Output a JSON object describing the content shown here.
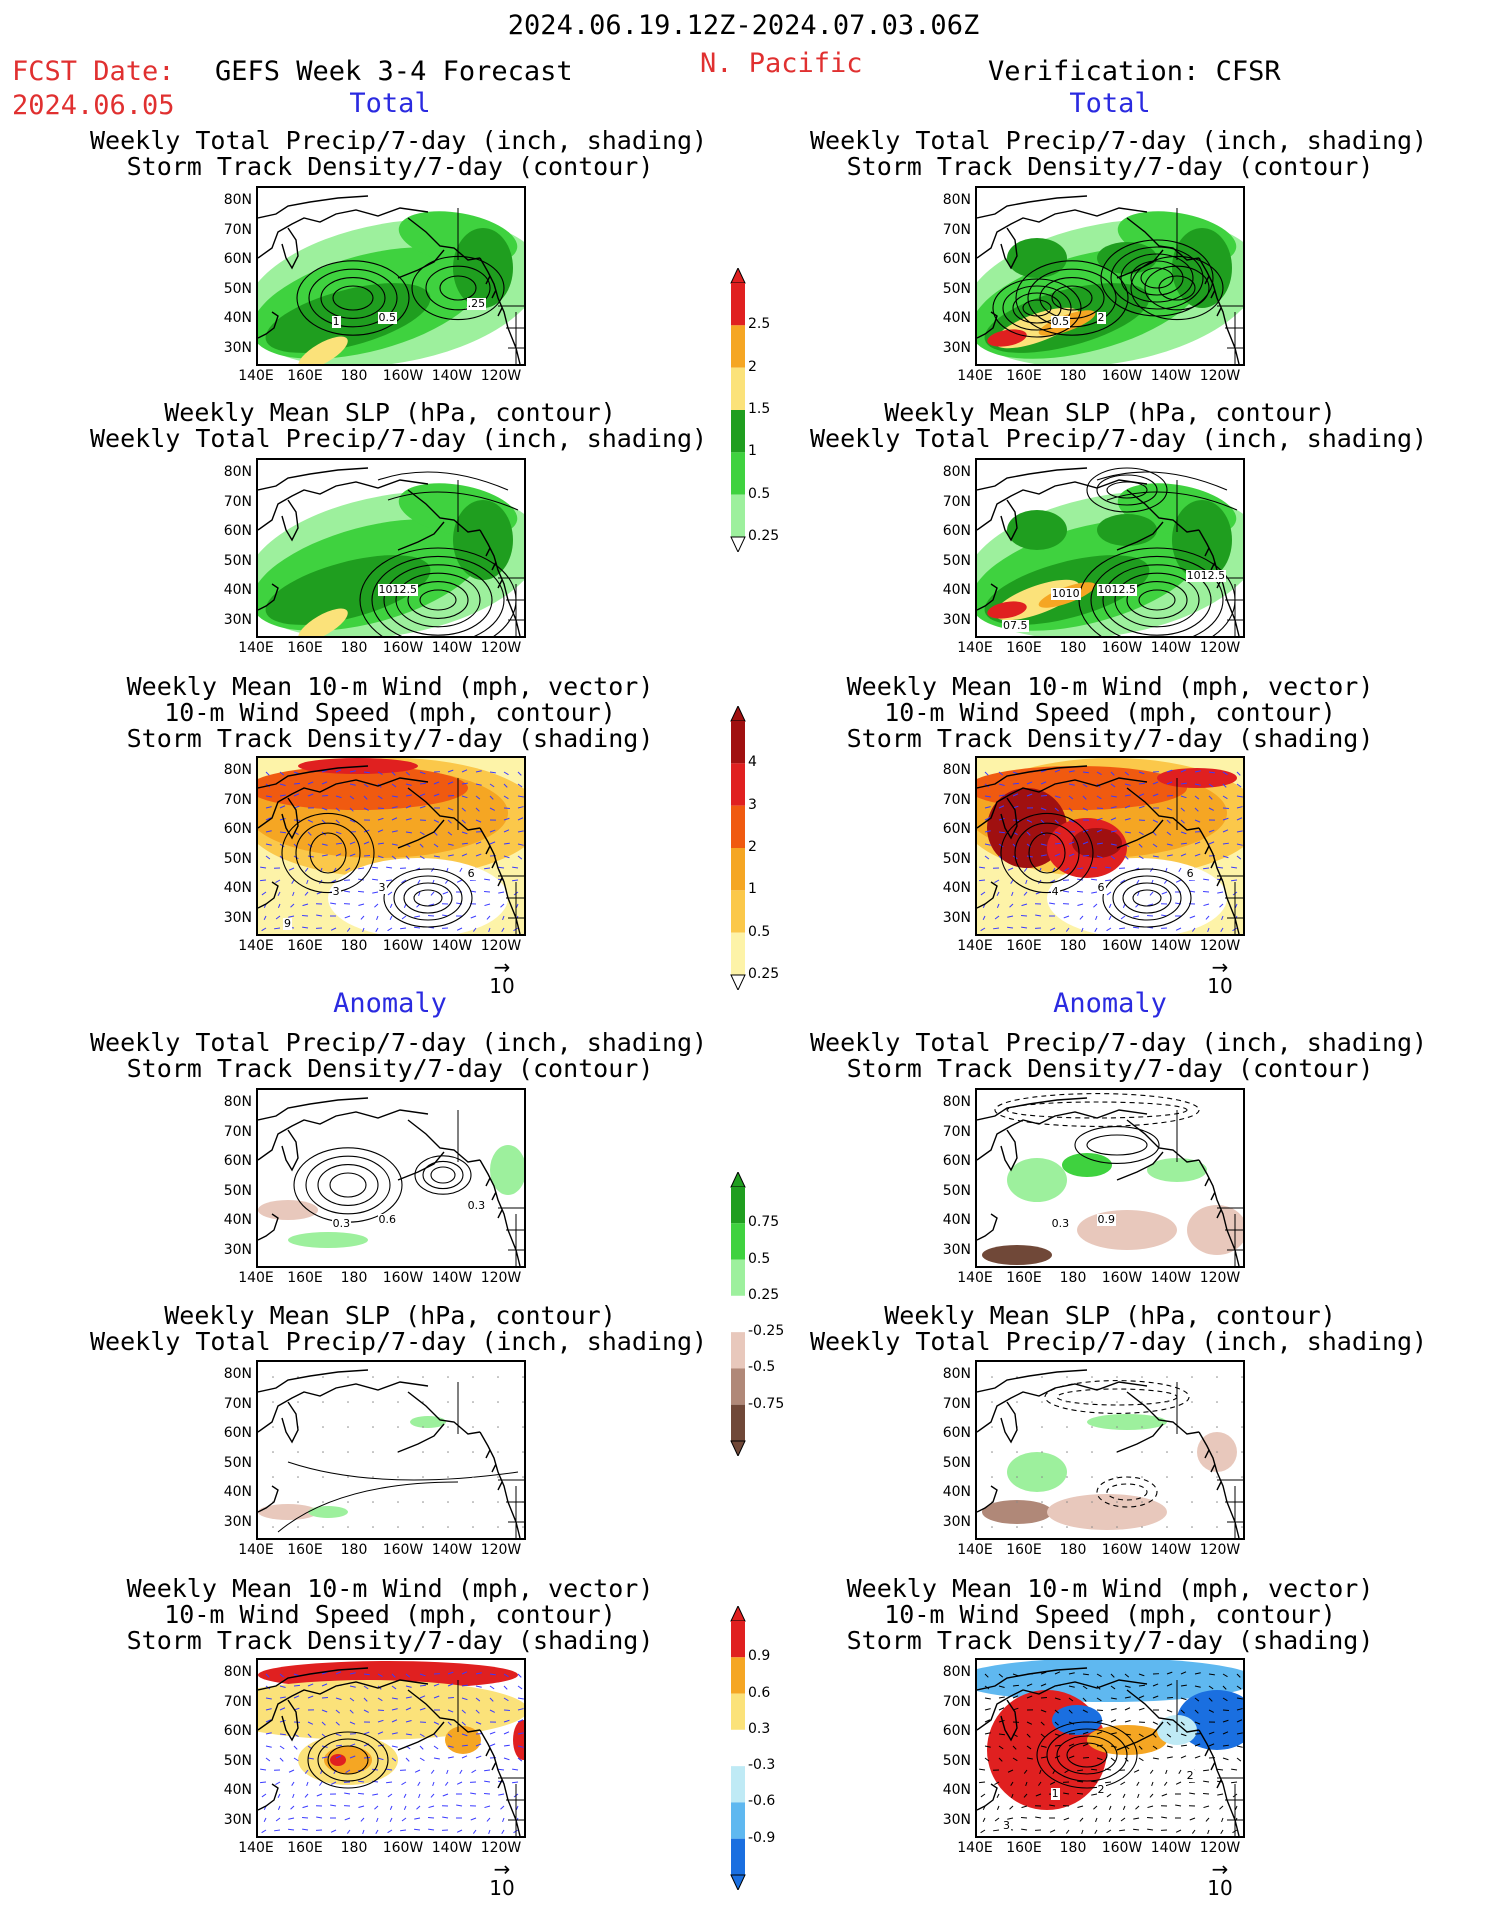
{
  "header": {
    "date_range": "2024.06.19.12Z-2024.07.03.06Z",
    "fcst_label": "FCST Date:",
    "fcst_date": "2024.06.05",
    "forecast_title": "GEFS Week 3-4 Forecast",
    "region": "N. Pacific",
    "verification": "Verification: CFSR"
  },
  "sections": {
    "total": "Total",
    "anomaly": "Anomaly"
  },
  "titles": {
    "precip_track": [
      "Weekly Total Precip/7-day (inch, shading)",
      "Storm Track Density/7-day (contour)"
    ],
    "slp_precip": [
      "Weekly Mean SLP (hPa, contour)",
      "Weekly Total Precip/7-day (inch, shading)"
    ],
    "wind_track": [
      "Weekly Mean 10-m Wind (mph, vector)",
      "10-m Wind Speed (mph, contour)",
      "Storm Track Density/7-day (shading)"
    ]
  },
  "axes": {
    "lat": [
      "80N",
      "70N",
      "60N",
      "50N",
      "40N",
      "30N"
    ],
    "lon": [
      "140E",
      "160E",
      "180",
      "160W",
      "140W",
      "120W"
    ]
  },
  "vector_ref": "10",
  "colorbars": {
    "precip_total": {
      "labels": [
        "2.5",
        "2",
        "1.5",
        "1",
        "0.5",
        "0.25"
      ],
      "colors": [
        "#e02020",
        "#f5a623",
        "#fbe27a",
        "#1f9e1f",
        "#3fd23f",
        "#9df09d"
      ]
    },
    "track_total": {
      "labels": [
        "4",
        "3",
        "2",
        "1",
        "0.5",
        "0.25"
      ],
      "colors": [
        "#a01010",
        "#e02020",
        "#f05a10",
        "#f5a623",
        "#fbc84a",
        "#fdf3a8"
      ]
    },
    "precip_anom": {
      "labels": [
        "0.75",
        "0.5",
        "0.25",
        "-0.25",
        "-0.5",
        "-0.75"
      ],
      "colors": [
        "#1f9e1f",
        "#3fd23f",
        "#9df09d",
        "#ffffff",
        "#e8c8bc",
        "#b08878",
        "#704838"
      ]
    },
    "track_anom": {
      "labels": [
        "0.9",
        "0.6",
        "0.3",
        "-0.3",
        "-0.6",
        "-0.9"
      ],
      "colors": [
        "#e02020",
        "#f5a623",
        "#fbe27a",
        "#ffffff",
        "#bfeaf5",
        "#5fb8f0",
        "#1a6fe0"
      ]
    }
  },
  "contour_labels": {
    "p1": [
      "0.5",
      "1",
      ".25"
    ],
    "p2": [
      "2",
      "0.5"
    ],
    "p3": [
      "1012.5"
    ],
    "p4": [
      "1012.5",
      "1010",
      "1012.5",
      "07.5"
    ],
    "p5": [
      "3",
      "3",
      "6",
      "9"
    ],
    "p6": [
      "6",
      "4",
      "6"
    ],
    "p7": [
      "0.6",
      "0.3",
      "0.3"
    ],
    "p8": [
      "0.9",
      "0.3"
    ],
    "p11": [
      "2",
      "1",
      "2",
      "3"
    ]
  }
}
